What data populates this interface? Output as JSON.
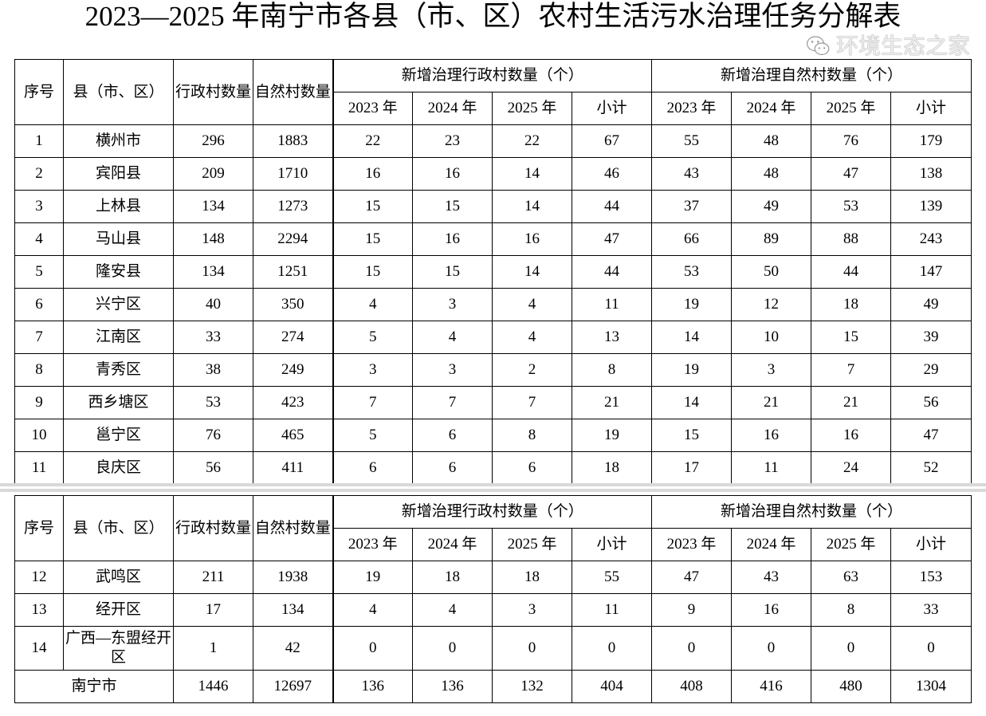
{
  "title": "2023—2025 年南宁市各县（市、区）农村生活污水治理任务分解表",
  "headers": {
    "no": "序号",
    "county": "县（市、区）",
    "admin_villages": "行政村数量",
    "natural_villages": "自然村数量",
    "new_admin_group": "新增治理行政村数量（个）",
    "new_natural_group": "新增治理自然村数量（个）",
    "years": [
      "2023 年",
      "2024 年",
      "2025 年",
      "小计"
    ]
  },
  "table1_rows": [
    [
      "1",
      "横州市",
      "296",
      "1883",
      "22",
      "23",
      "22",
      "67",
      "55",
      "48",
      "76",
      "179"
    ],
    [
      "2",
      "宾阳县",
      "209",
      "1710",
      "16",
      "16",
      "14",
      "46",
      "43",
      "48",
      "47",
      "138"
    ],
    [
      "3",
      "上林县",
      "134",
      "1273",
      "15",
      "15",
      "14",
      "44",
      "37",
      "49",
      "53",
      "139"
    ],
    [
      "4",
      "马山县",
      "148",
      "2294",
      "15",
      "16",
      "16",
      "47",
      "66",
      "89",
      "88",
      "243"
    ],
    [
      "5",
      "隆安县",
      "134",
      "1251",
      "15",
      "15",
      "14",
      "44",
      "53",
      "50",
      "44",
      "147"
    ],
    [
      "6",
      "兴宁区",
      "40",
      "350",
      "4",
      "3",
      "4",
      "11",
      "19",
      "12",
      "18",
      "49"
    ],
    [
      "7",
      "江南区",
      "33",
      "274",
      "5",
      "4",
      "4",
      "13",
      "14",
      "10",
      "15",
      "39"
    ],
    [
      "8",
      "青秀区",
      "38",
      "249",
      "3",
      "3",
      "2",
      "8",
      "19",
      "3",
      "7",
      "29"
    ],
    [
      "9",
      "西乡塘区",
      "53",
      "423",
      "7",
      "7",
      "7",
      "21",
      "14",
      "21",
      "21",
      "56"
    ],
    [
      "10",
      "邕宁区",
      "76",
      "465",
      "5",
      "6",
      "8",
      "19",
      "15",
      "16",
      "16",
      "47"
    ],
    [
      "11",
      "良庆区",
      "56",
      "411",
      "6",
      "6",
      "6",
      "18",
      "17",
      "11",
      "24",
      "52"
    ]
  ],
  "table2_rows": [
    [
      "12",
      "武鸣区",
      "211",
      "1938",
      "19",
      "18",
      "18",
      "55",
      "47",
      "43",
      "63",
      "153"
    ],
    [
      "13",
      "经开区",
      "17",
      "134",
      "4",
      "4",
      "3",
      "11",
      "9",
      "16",
      "8",
      "33"
    ],
    [
      "14",
      "广西—东盟经开区",
      "1",
      "42",
      "0",
      "0",
      "0",
      "0",
      "0",
      "0",
      "0",
      "0"
    ]
  ],
  "total_row": [
    "南宁市",
    "1446",
    "12697",
    "136",
    "136",
    "132",
    "404",
    "408",
    "416",
    "480",
    "1304"
  ],
  "watermark": "环境生态之家"
}
